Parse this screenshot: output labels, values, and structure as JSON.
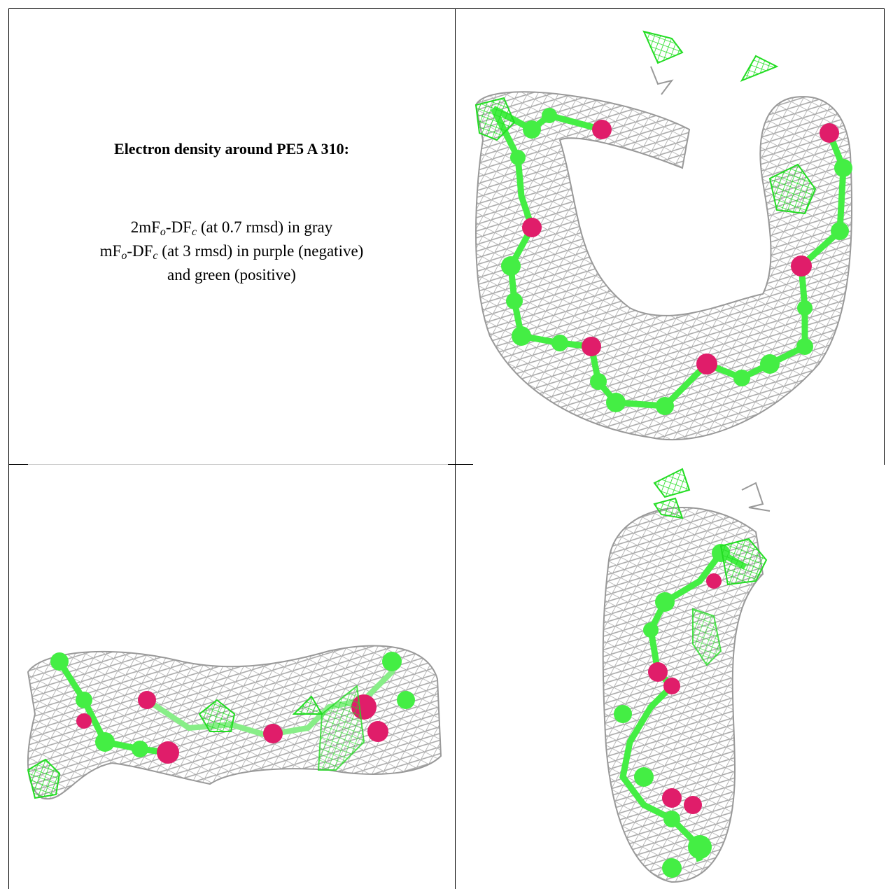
{
  "caption": {
    "title": "Electron density around PE5 A 310:",
    "lines": [
      [
        {
          "text": "2mF"
        },
        {
          "sub": "o"
        },
        {
          "text": "-DF"
        },
        {
          "sub": "c"
        },
        {
          "text": " (at 0.7 rmsd) in gray"
        }
      ],
      [
        {
          "text": "mF"
        },
        {
          "sub": "o"
        },
        {
          "text": "-DF"
        },
        {
          "sub": "c"
        },
        {
          "text": " (at 3 rmsd) in purple (negative)"
        }
      ],
      [
        {
          "text": "and green (positive)"
        }
      ]
    ]
  }
}
